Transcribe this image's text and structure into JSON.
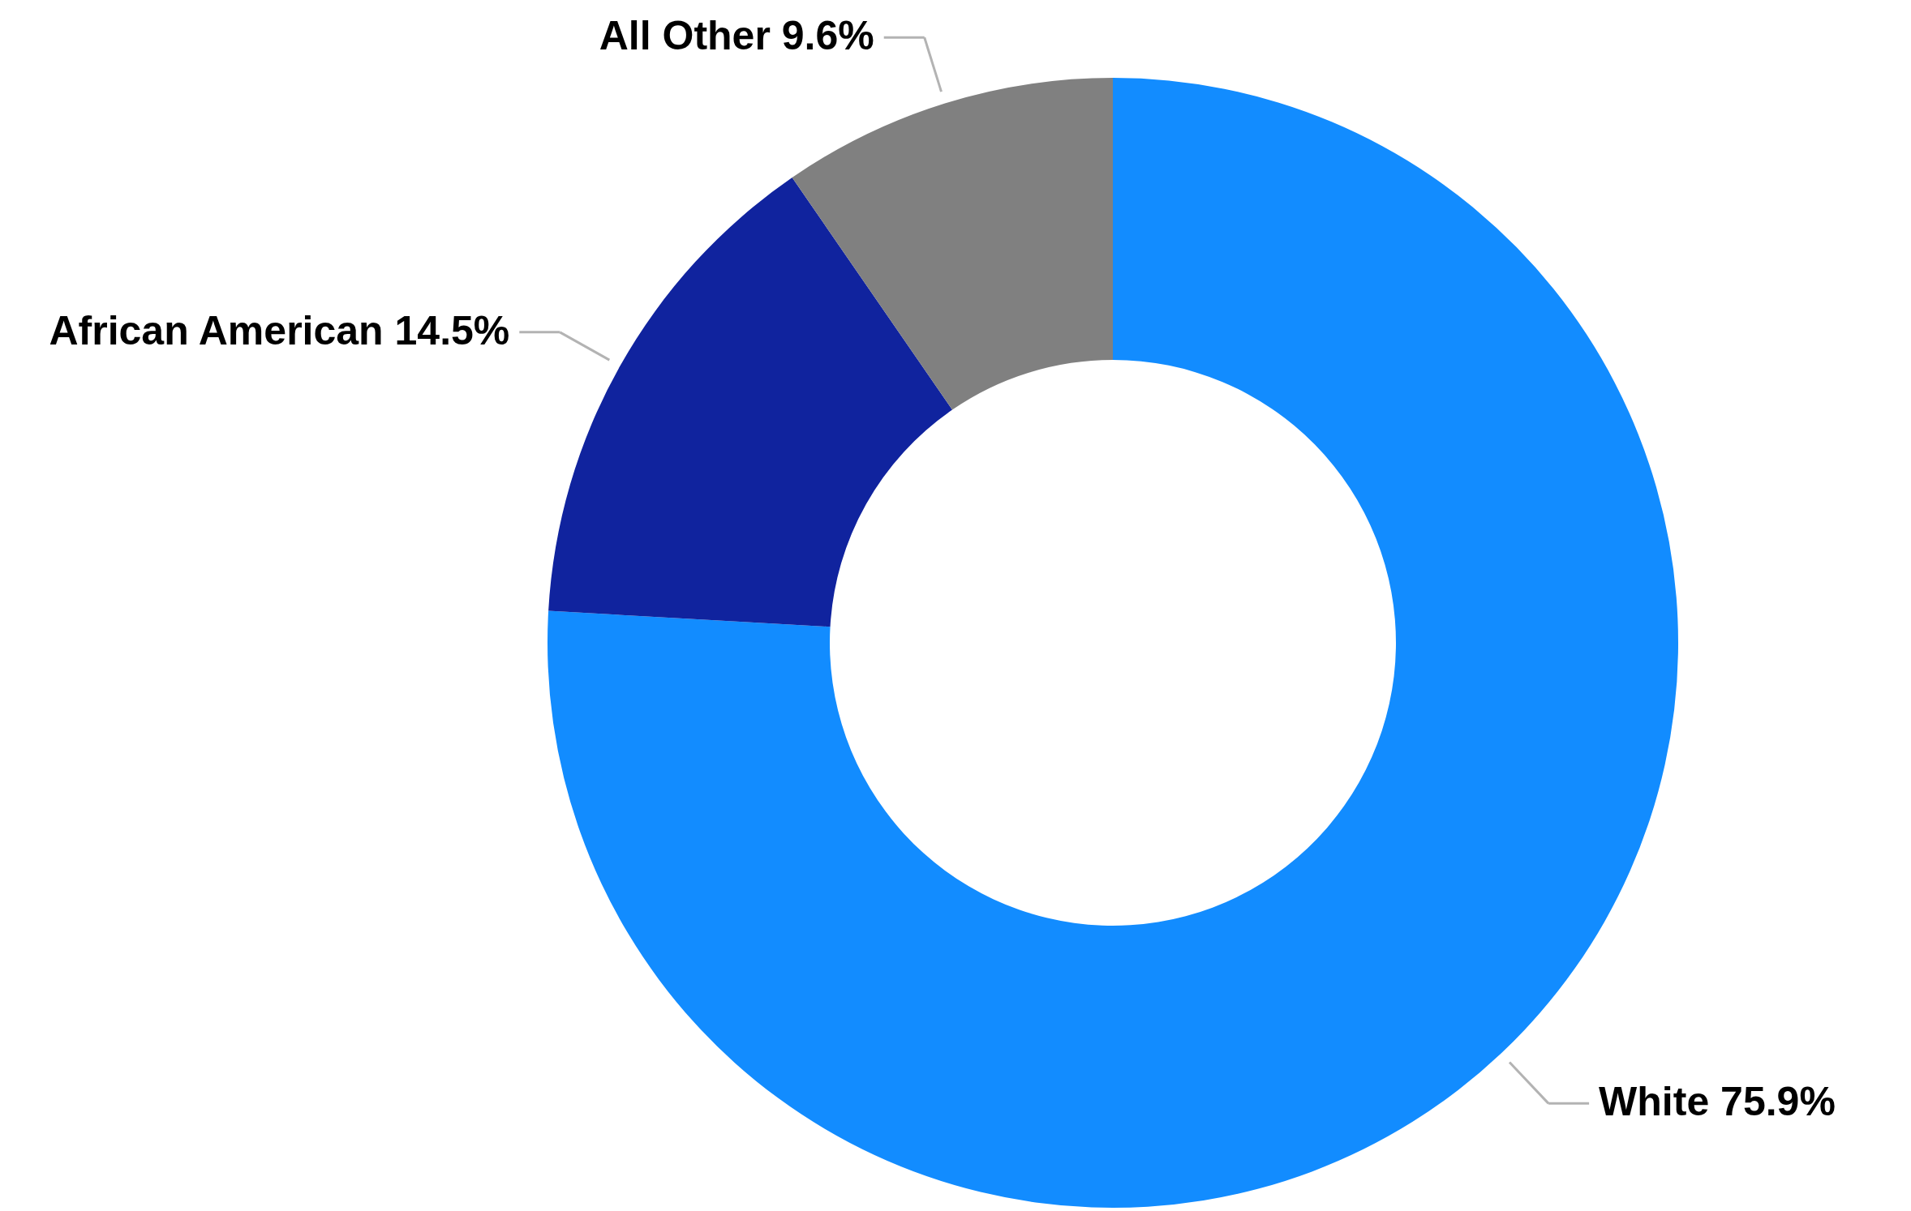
{
  "chart_data": {
    "type": "donut",
    "categories": [
      "White",
      "African American",
      "All Other"
    ],
    "values": [
      75.9,
      14.5,
      9.6
    ],
    "value_labels": [
      "75.9%",
      "14.5%",
      "9.6%"
    ],
    "colors": [
      "#128cff",
      "#10239e",
      "#808080"
    ]
  }
}
